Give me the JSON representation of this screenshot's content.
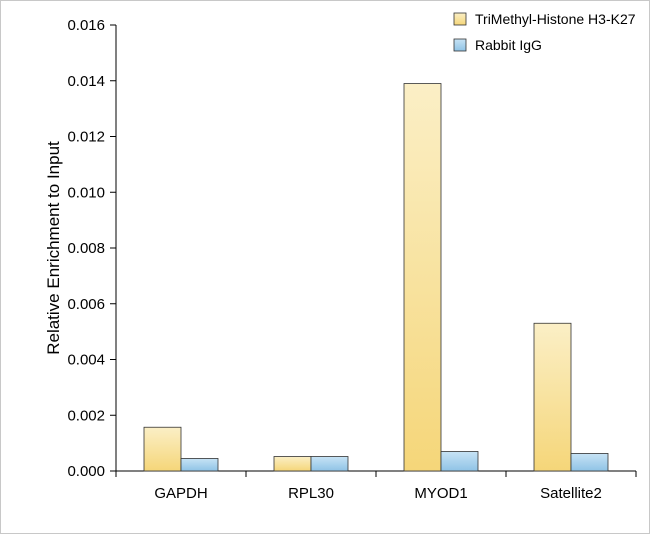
{
  "chart_data": {
    "type": "bar",
    "title": "",
    "xlabel": "",
    "ylabel": "Relative Enrichment to Input",
    "categories": [
      "GAPDH",
      "RPL30",
      "MYOD1",
      "Satellite2"
    ],
    "series": [
      {
        "name": "TriMethyl-Histone H3-K27",
        "values": [
          0.00157,
          0.00052,
          0.0139,
          0.0053
        ],
        "color_top": "#fbefc6",
        "color_bottom": "#f5d679"
      },
      {
        "name": "Rabbit IgG",
        "values": [
          0.00045,
          0.00052,
          0.0007,
          0.00063
        ],
        "color_top": "#c7e3f5",
        "color_bottom": "#8fc3e6"
      }
    ],
    "ylim": [
      0,
      0.016
    ],
    "yticks": [
      "0.000",
      "0.002",
      "0.004",
      "0.006",
      "0.008",
      "0.010",
      "0.012",
      "0.014",
      "0.016"
    ],
    "grid": false,
    "legend_position": "top-right"
  }
}
